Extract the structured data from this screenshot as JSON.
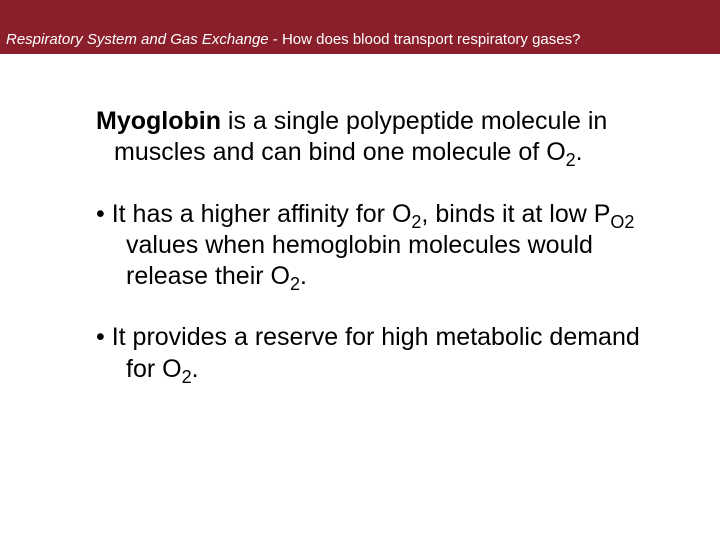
{
  "header": {
    "title_italic": "Respiratory System and Gas Exchange",
    "title_rest": " - How does blood transport respiratory gases?",
    "bg_color": "#8a1e2a",
    "text_color": "#ffffff"
  },
  "body": {
    "para1_bold": "Myoglobin",
    "para1_a": " is a single polypeptide molecule in muscles and can bind one molecule of O",
    "para1_sub": "2",
    "para1_b": ".",
    "bullet1_prefix": "• ",
    "bullet1_a": "It has a higher affinity for O",
    "bullet1_sub1": "2",
    "bullet1_b": ", binds it at low P",
    "bullet1_sub2": "O2",
    "bullet1_c": " values when hemoglobin molecules would release their O",
    "bullet1_sub3": "2",
    "bullet1_d": ".",
    "bullet2_prefix": "• ",
    "bullet2_a": "It provides a reserve for high metabolic demand for O",
    "bullet2_sub": "2",
    "bullet2_b": "."
  },
  "style": {
    "body_fontsize": 25,
    "header_fontsize": 15,
    "page_bg": "#ffffff",
    "text_color": "#000000"
  }
}
